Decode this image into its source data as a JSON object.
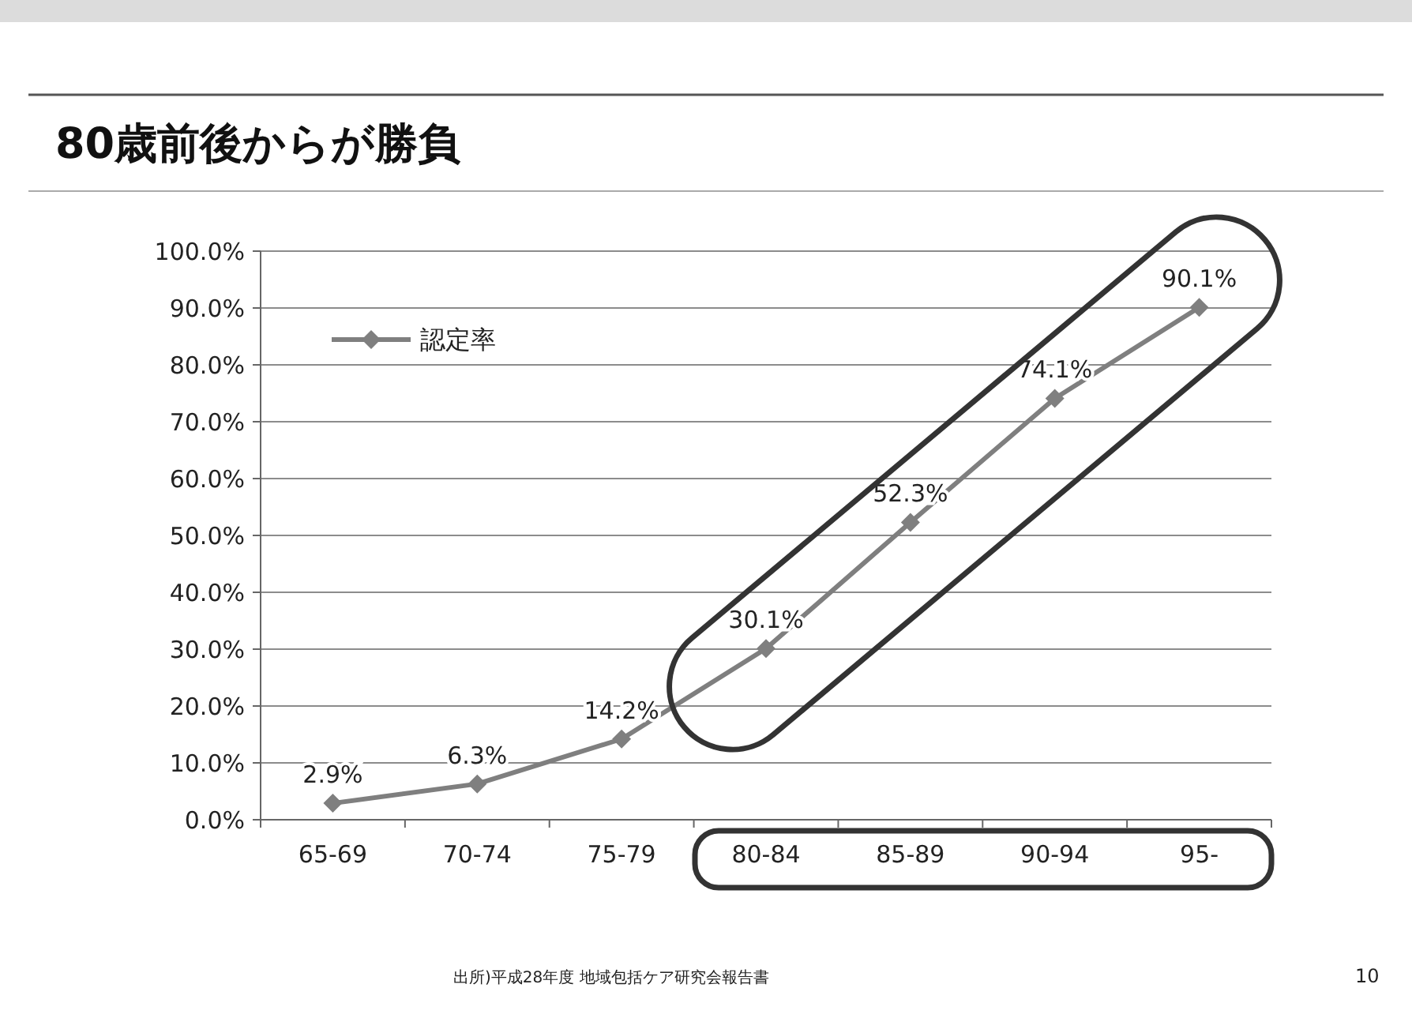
{
  "chart_data": {
    "type": "line",
    "title": "80歳前後からが勝負",
    "categories": [
      "65-69",
      "70-74",
      "75-79",
      "80-84",
      "85-89",
      "90-94",
      "95-"
    ],
    "series": [
      {
        "name": "認定率",
        "color": "#7f7f7f",
        "values": [
          2.9,
          6.3,
          14.2,
          30.1,
          52.3,
          74.1,
          90.1
        ],
        "value_labels": [
          "2.9%",
          "6.3%",
          "14.2%",
          "30.1%",
          "52.3%",
          "74.1%",
          "90.1%"
        ]
      }
    ],
    "ylim": [
      0,
      100
    ],
    "yticks": [
      {
        "value": 0,
        "label": "0.0%"
      },
      {
        "value": 10,
        "label": "10.0%"
      },
      {
        "value": 20,
        "label": "20.0%"
      },
      {
        "value": 30,
        "label": "30.0%"
      },
      {
        "value": 40,
        "label": "40.0%"
      },
      {
        "value": 50,
        "label": "50.0%"
      },
      {
        "value": 60,
        "label": "60.0%"
      },
      {
        "value": 70,
        "label": "70.0%"
      },
      {
        "value": 80,
        "label": "80.0%"
      },
      {
        "value": 90,
        "label": "90.0%"
      },
      {
        "value": 100,
        "label": "100.0%"
      }
    ],
    "grid": "y",
    "legend": "top left",
    "marker": "diamond",
    "line_style": "solid",
    "annotations": [
      "出所)平成28年度 地域包括ケア研究会報告書",
      "10"
    ]
  }
}
